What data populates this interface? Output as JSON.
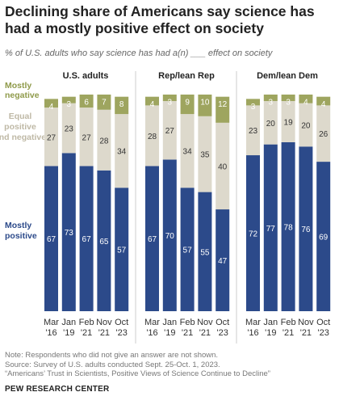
{
  "title": "Declining share of Americans say science has had a mostly positive effect on society",
  "subtitle": "% of U.S. adults who say science has had a(n) ___ effect on society",
  "colors": {
    "positive": "#2c4a8a",
    "equal": "#ddd9cc",
    "negative": "#9ea55f",
    "negative_label": "#8f9a4a",
    "equal_label": "#bfb9a6",
    "positive_label": "#2c4a8a"
  },
  "chart_data": {
    "type": "bar",
    "stacked": true,
    "legend": [
      "Mostly negative",
      "Equal positive and negative",
      "Mostly positive"
    ],
    "x_labels": [
      {
        "month": "Mar",
        "year": "'16"
      },
      {
        "month": "Jan",
        "year": "'19"
      },
      {
        "month": "Feb",
        "year": "'21"
      },
      {
        "month": "Nov",
        "year": "'21"
      },
      {
        "month": "Oct",
        "year": "'23"
      }
    ],
    "ylim": [
      0,
      100
    ],
    "panels": [
      {
        "title": "U.S. adults",
        "series": [
          {
            "name": "Mostly positive",
            "values": [
              67,
              73,
              67,
              65,
              57
            ]
          },
          {
            "name": "Equal positive and negative",
            "values": [
              27,
              23,
              27,
              28,
              34
            ]
          },
          {
            "name": "Mostly negative",
            "values": [
              4,
              3,
              6,
              7,
              8
            ]
          }
        ]
      },
      {
        "title": "Rep/lean Rep",
        "series": [
          {
            "name": "Mostly positive",
            "values": [
              67,
              70,
              57,
              55,
              47
            ]
          },
          {
            "name": "Equal positive and negative",
            "values": [
              28,
              27,
              34,
              35,
              40
            ]
          },
          {
            "name": "Mostly negative",
            "values": [
              4,
              3,
              9,
              10,
              12
            ]
          }
        ]
      },
      {
        "title": "Dem/lean Dem",
        "series": [
          {
            "name": "Mostly positive",
            "values": [
              72,
              77,
              78,
              76,
              69
            ]
          },
          {
            "name": "Equal positive and negative",
            "values": [
              23,
              20,
              19,
              20,
              26
            ]
          },
          {
            "name": "Mostly negative",
            "values": [
              3,
              3,
              3,
              4,
              4
            ]
          }
        ]
      }
    ]
  },
  "notes": [
    "Note: Respondents who did not give an answer are not shown.",
    "Source: Survey of U.S. adults conducted Sept. 25-Oct. 1, 2023.",
    "“Americans’ Trust in Scientists, Positive Views of Science Continue to Decline”"
  ],
  "brand": "PEW RESEARCH CENTER"
}
